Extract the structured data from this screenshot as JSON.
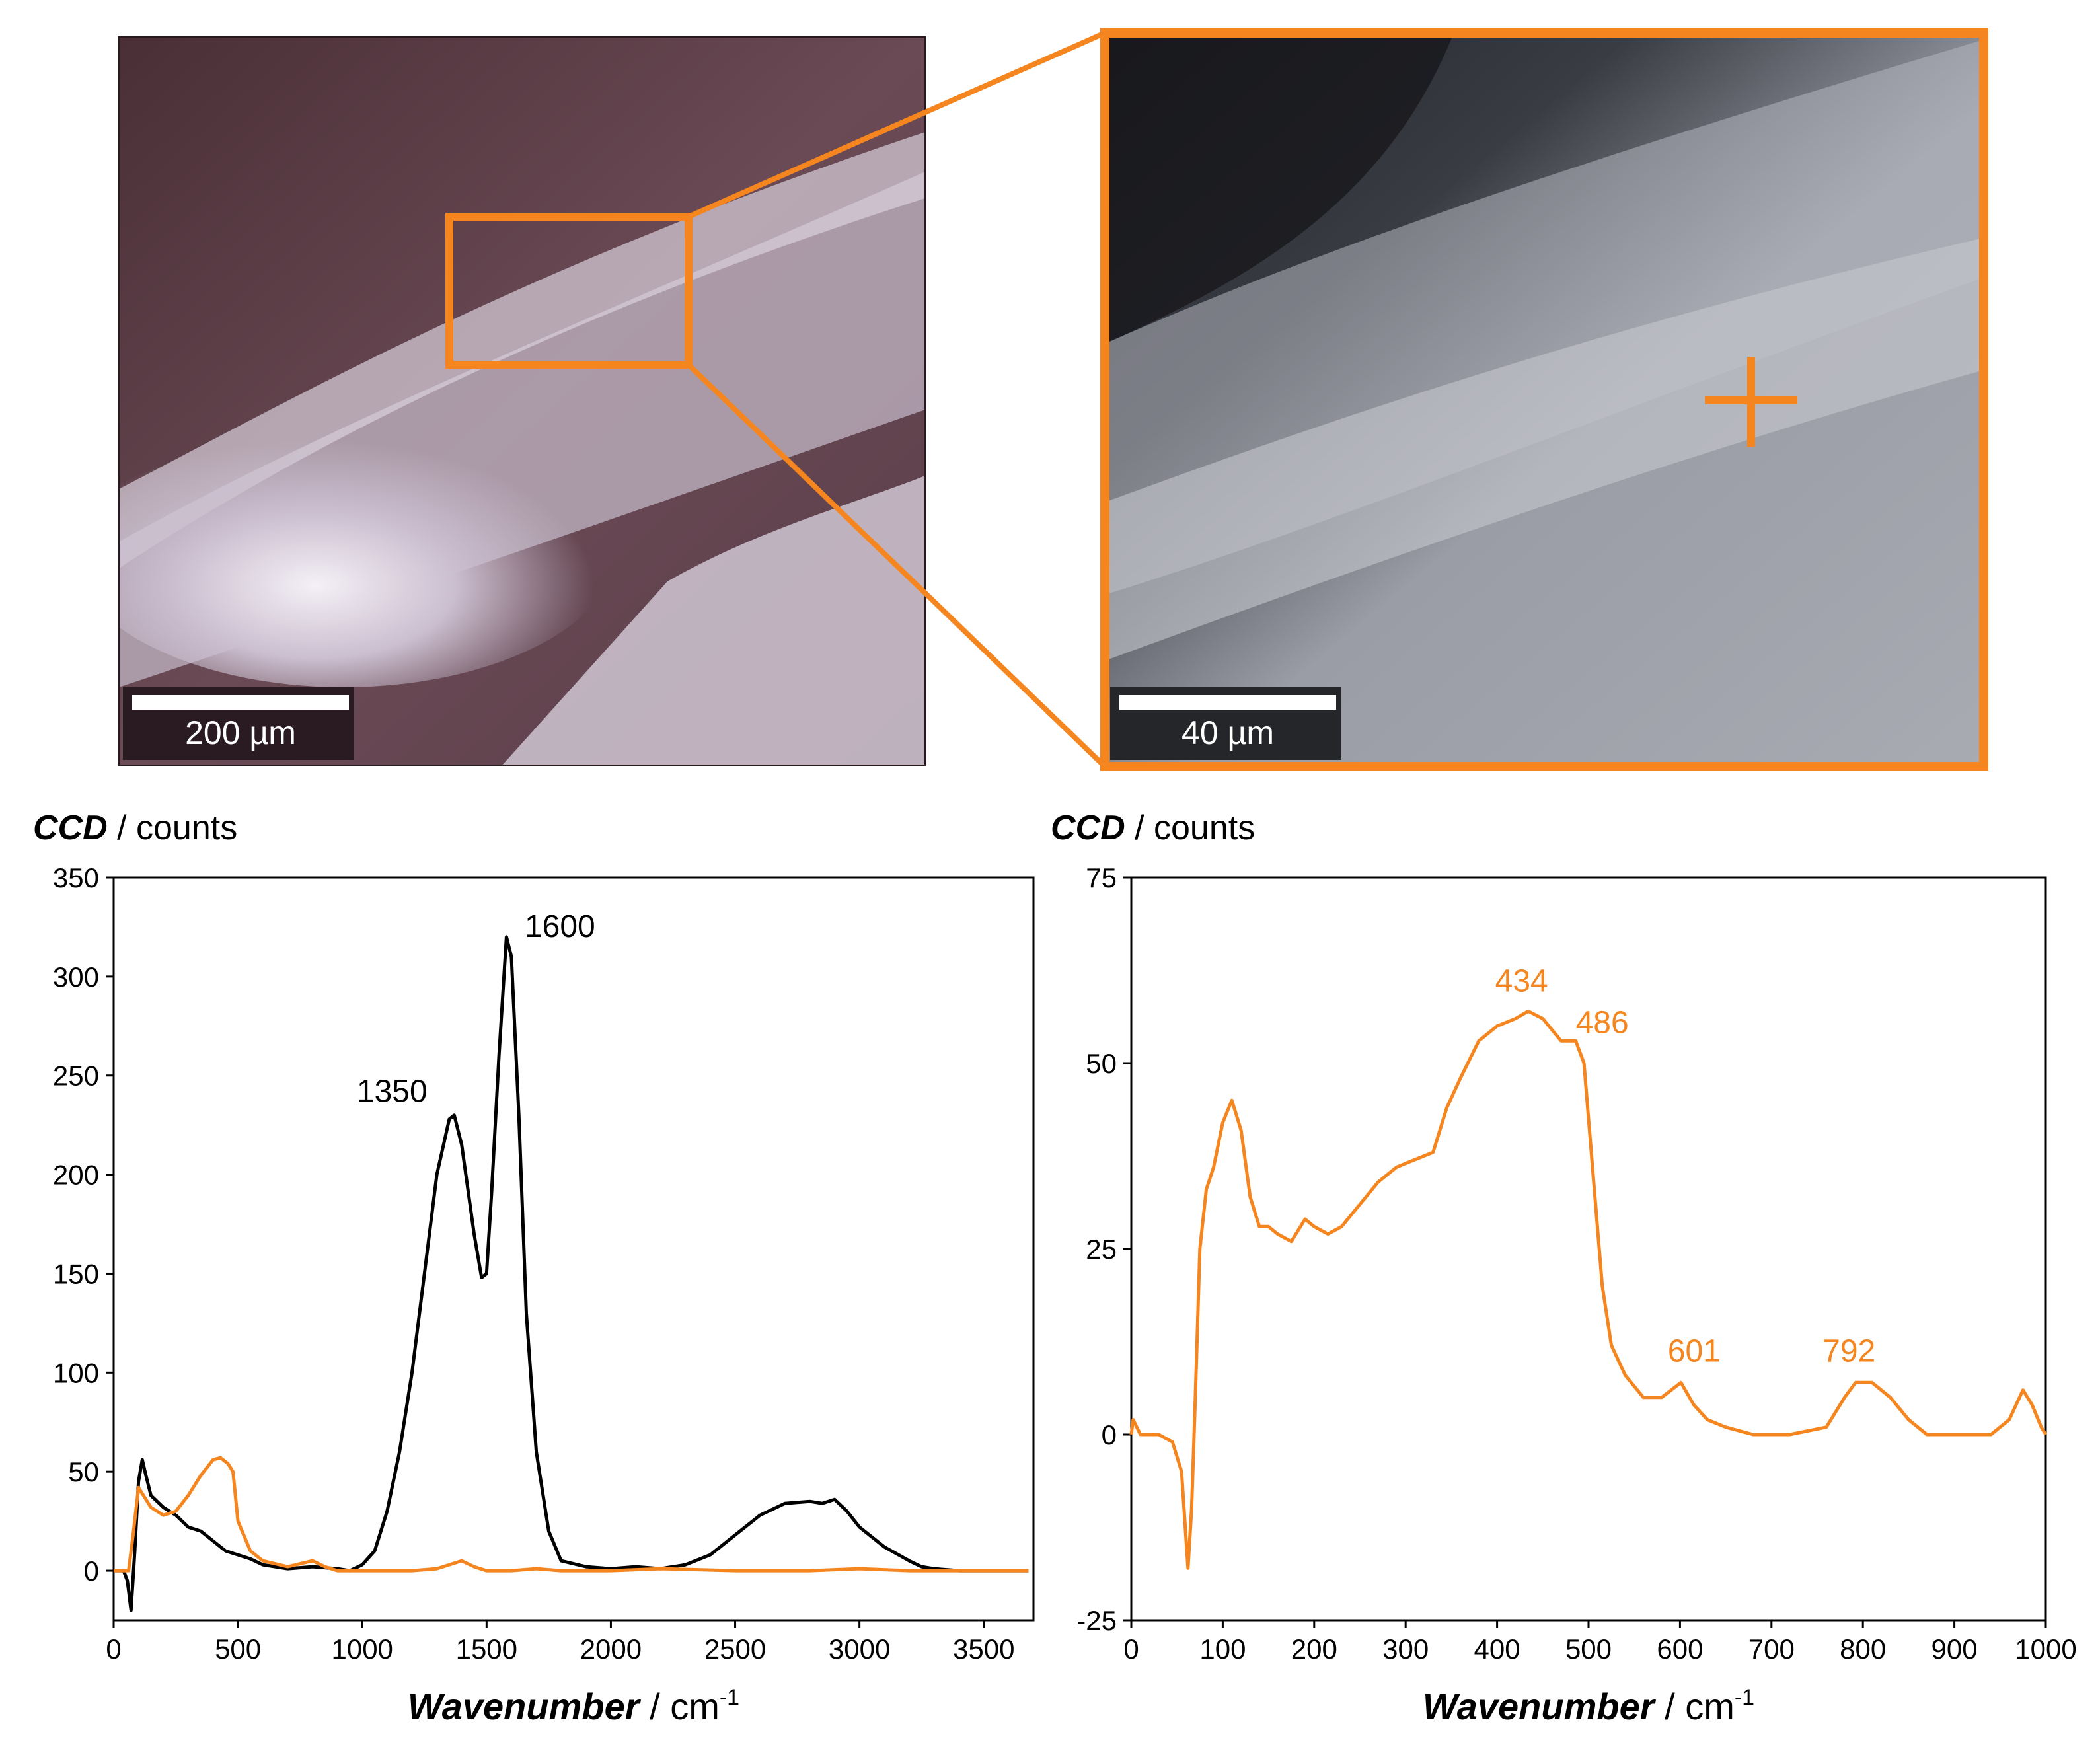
{
  "photos": {
    "left_scale_label": "200 µm",
    "right_scale_label": "40 µm"
  },
  "colors": {
    "orange": "#f5861f",
    "black": "#000000"
  },
  "chart_data": [
    {
      "type": "line",
      "yaxis_title_bold": "CCD",
      "yaxis_title_rest": " / counts",
      "xaxis_title_bold": "Wavenumber",
      "xaxis_title_rest": " / cm",
      "xaxis_title_sup": "-1",
      "xlim": [
        0,
        3700
      ],
      "ylim": [
        -25,
        350
      ],
      "xticks": [
        0,
        500,
        1000,
        1500,
        2000,
        2500,
        3000,
        3500
      ],
      "yticks": [
        0,
        50,
        100,
        150,
        200,
        250,
        300,
        350
      ],
      "series": [
        {
          "color": "black",
          "points": [
            [
              0,
              0
            ],
            [
              40,
              0
            ],
            [
              55,
              -5
            ],
            [
              70,
              -20
            ],
            [
              85,
              10
            ],
            [
              100,
              45
            ],
            [
              115,
              56
            ],
            [
              130,
              48
            ],
            [
              150,
              38
            ],
            [
              200,
              32
            ],
            [
              250,
              28
            ],
            [
              300,
              22
            ],
            [
              350,
              20
            ],
            [
              400,
              15
            ],
            [
              450,
              10
            ],
            [
              500,
              8
            ],
            [
              550,
              6
            ],
            [
              600,
              3
            ],
            [
              700,
              1
            ],
            [
              800,
              2
            ],
            [
              900,
              1
            ],
            [
              950,
              0
            ],
            [
              1000,
              3
            ],
            [
              1050,
              10
            ],
            [
              1100,
              30
            ],
            [
              1150,
              60
            ],
            [
              1200,
              100
            ],
            [
              1250,
              150
            ],
            [
              1300,
              200
            ],
            [
              1350,
              228
            ],
            [
              1370,
              230
            ],
            [
              1400,
              215
            ],
            [
              1450,
              170
            ],
            [
              1480,
              148
            ],
            [
              1500,
              150
            ],
            [
              1520,
              190
            ],
            [
              1550,
              260
            ],
            [
              1580,
              320
            ],
            [
              1600,
              310
            ],
            [
              1630,
              230
            ],
            [
              1660,
              130
            ],
            [
              1700,
              60
            ],
            [
              1750,
              20
            ],
            [
              1800,
              5
            ],
            [
              1900,
              2
            ],
            [
              2000,
              1
            ],
            [
              2100,
              2
            ],
            [
              2200,
              1
            ],
            [
              2300,
              3
            ],
            [
              2400,
              8
            ],
            [
              2500,
              18
            ],
            [
              2600,
              28
            ],
            [
              2700,
              34
            ],
            [
              2800,
              35
            ],
            [
              2850,
              34
            ],
            [
              2900,
              36
            ],
            [
              2950,
              30
            ],
            [
              3000,
              22
            ],
            [
              3100,
              12
            ],
            [
              3200,
              5
            ],
            [
              3250,
              2
            ],
            [
              3300,
              1
            ],
            [
              3400,
              0
            ],
            [
              3500,
              0
            ],
            [
              3600,
              0
            ],
            [
              3680,
              0
            ]
          ]
        },
        {
          "color": "orange",
          "points": [
            [
              0,
              0
            ],
            [
              60,
              0
            ],
            [
              80,
              20
            ],
            [
              100,
              42
            ],
            [
              120,
              38
            ],
            [
              150,
              32
            ],
            [
              200,
              28
            ],
            [
              250,
              30
            ],
            [
              300,
              38
            ],
            [
              350,
              48
            ],
            [
              400,
              56
            ],
            [
              430,
              57
            ],
            [
              460,
              54
            ],
            [
              480,
              50
            ],
            [
              500,
              25
            ],
            [
              550,
              10
            ],
            [
              600,
              5
            ],
            [
              700,
              2
            ],
            [
              800,
              5
            ],
            [
              850,
              2
            ],
            [
              900,
              0
            ],
            [
              1000,
              0
            ],
            [
              1100,
              0
            ],
            [
              1200,
              0
            ],
            [
              1300,
              1
            ],
            [
              1400,
              5
            ],
            [
              1450,
              2
            ],
            [
              1500,
              0
            ],
            [
              1600,
              0
            ],
            [
              1700,
              1
            ],
            [
              1800,
              0
            ],
            [
              2000,
              0
            ],
            [
              2200,
              1
            ],
            [
              2500,
              0
            ],
            [
              2800,
              0
            ],
            [
              3000,
              1
            ],
            [
              3200,
              0
            ],
            [
              3400,
              0
            ],
            [
              3680,
              0
            ]
          ]
        }
      ],
      "annotations": [
        {
          "text": "1350",
          "x": 1350,
          "y": 230,
          "color": "black"
        },
        {
          "text": "1600",
          "x": 1600,
          "y": 320,
          "color": "black"
        }
      ]
    },
    {
      "type": "line",
      "yaxis_title_bold": "CCD",
      "yaxis_title_rest": " / counts",
      "xaxis_title_bold": "Wavenumber",
      "xaxis_title_rest": " / cm",
      "xaxis_title_sup": "-1",
      "xlim": [
        0,
        1000
      ],
      "ylim": [
        -25,
        75
      ],
      "xticks": [
        0,
        100,
        200,
        300,
        400,
        500,
        600,
        700,
        800,
        900,
        1000
      ],
      "yticks": [
        -25,
        0,
        25,
        50,
        75
      ],
      "series": [
        {
          "color": "orange",
          "points": [
            [
              0,
              0
            ],
            [
              2,
              2
            ],
            [
              10,
              0
            ],
            [
              30,
              0
            ],
            [
              45,
              -1
            ],
            [
              55,
              -5
            ],
            [
              62,
              -18
            ],
            [
              66,
              -10
            ],
            [
              70,
              5
            ],
            [
              75,
              25
            ],
            [
              82,
              33
            ],
            [
              90,
              36
            ],
            [
              100,
              42
            ],
            [
              110,
              45
            ],
            [
              120,
              41
            ],
            [
              130,
              32
            ],
            [
              140,
              28
            ],
            [
              150,
              28
            ],
            [
              160,
              27
            ],
            [
              175,
              26
            ],
            [
              190,
              29
            ],
            [
              200,
              28
            ],
            [
              215,
              27
            ],
            [
              230,
              28
            ],
            [
              250,
              31
            ],
            [
              270,
              34
            ],
            [
              290,
              36
            ],
            [
              310,
              37
            ],
            [
              330,
              38
            ],
            [
              345,
              44
            ],
            [
              360,
              48
            ],
            [
              380,
              53
            ],
            [
              400,
              55
            ],
            [
              420,
              56
            ],
            [
              434,
              57
            ],
            [
              450,
              56
            ],
            [
              470,
              53
            ],
            [
              486,
              53
            ],
            [
              495,
              50
            ],
            [
              505,
              35
            ],
            [
              515,
              20
            ],
            [
              525,
              12
            ],
            [
              540,
              8
            ],
            [
              560,
              5
            ],
            [
              580,
              5
            ],
            [
              601,
              7
            ],
            [
              615,
              4
            ],
            [
              630,
              2
            ],
            [
              650,
              1
            ],
            [
              680,
              0
            ],
            [
              720,
              0
            ],
            [
              760,
              1
            ],
            [
              780,
              5
            ],
            [
              792,
              7
            ],
            [
              810,
              7
            ],
            [
              830,
              5
            ],
            [
              850,
              2
            ],
            [
              870,
              0
            ],
            [
              900,
              0
            ],
            [
              940,
              0
            ],
            [
              960,
              2
            ],
            [
              975,
              6
            ],
            [
              985,
              4
            ],
            [
              995,
              1
            ],
            [
              1000,
              0
            ]
          ]
        }
      ],
      "annotations": [
        {
          "text": "434",
          "x": 434,
          "y": 57,
          "color": "orange"
        },
        {
          "text": "486",
          "x": 486,
          "y": 53,
          "color": "orange"
        },
        {
          "text": "601",
          "x": 601,
          "y": 7,
          "color": "orange"
        },
        {
          "text": "792",
          "x": 792,
          "y": 7,
          "color": "orange"
        }
      ]
    }
  ]
}
